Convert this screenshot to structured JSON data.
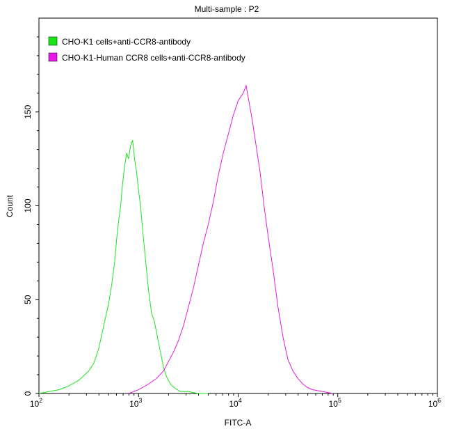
{
  "chart_data": {
    "type": "line",
    "title": "Multi-sample : P2",
    "xlabel": "FITC-A",
    "ylabel": "Count",
    "x_scale": "log10",
    "xlim_exp": [
      2,
      6
    ],
    "ylim": [
      0,
      200
    ],
    "grid": false,
    "legend_position": "top-left",
    "x_ticks": [
      {
        "base": "10",
        "exp": "2"
      },
      {
        "base": "10",
        "exp": "3"
      },
      {
        "base": "10",
        "exp": "4"
      },
      {
        "base": "10",
        "exp": "5"
      },
      {
        "base": "10",
        "exp": "6"
      }
    ],
    "y_ticks": [
      {
        "value": 0,
        "label": "0"
      },
      {
        "value": 50,
        "label": "50"
      },
      {
        "value": 100,
        "label": "100"
      },
      {
        "value": 150,
        "label": "150"
      }
    ],
    "series": [
      {
        "name": "CHO-K1 cells+anti-CCR8-antibody",
        "color": "#19e619",
        "points": [
          [
            2.0,
            0
          ],
          [
            2.1,
            1
          ],
          [
            2.2,
            2
          ],
          [
            2.3,
            4
          ],
          [
            2.4,
            7
          ],
          [
            2.5,
            12
          ],
          [
            2.55,
            16
          ],
          [
            2.6,
            24
          ],
          [
            2.65,
            36
          ],
          [
            2.7,
            48
          ],
          [
            2.73,
            58
          ],
          [
            2.76,
            70
          ],
          [
            2.78,
            82
          ],
          [
            2.8,
            92
          ],
          [
            2.82,
            100
          ],
          [
            2.84,
            112
          ],
          [
            2.86,
            121
          ],
          [
            2.88,
            128
          ],
          [
            2.9,
            125
          ],
          [
            2.92,
            132
          ],
          [
            2.94,
            135
          ],
          [
            2.96,
            125
          ],
          [
            2.98,
            118
          ],
          [
            3.0,
            108
          ],
          [
            3.02,
            100
          ],
          [
            3.05,
            82
          ],
          [
            3.08,
            66
          ],
          [
            3.1,
            55
          ],
          [
            3.13,
            43
          ],
          [
            3.16,
            38
          ],
          [
            3.19,
            30
          ],
          [
            3.22,
            22
          ],
          [
            3.25,
            14
          ],
          [
            3.28,
            9
          ],
          [
            3.32,
            5
          ],
          [
            3.36,
            3
          ],
          [
            3.42,
            1
          ],
          [
            3.5,
            1
          ],
          [
            3.6,
            0
          ],
          [
            3.7,
            0
          ]
        ]
      },
      {
        "name": "CHO-K1-Human CCR8 cells+anti-CCR8-antibody",
        "color": "#e619e6",
        "points": [
          [
            2.9,
            0
          ],
          [
            3.0,
            2
          ],
          [
            3.1,
            5
          ],
          [
            3.18,
            8
          ],
          [
            3.25,
            12
          ],
          [
            3.3,
            17
          ],
          [
            3.35,
            22
          ],
          [
            3.4,
            28
          ],
          [
            3.45,
            36
          ],
          [
            3.5,
            46
          ],
          [
            3.55,
            56
          ],
          [
            3.6,
            68
          ],
          [
            3.65,
            80
          ],
          [
            3.7,
            90
          ],
          [
            3.75,
            102
          ],
          [
            3.8,
            116
          ],
          [
            3.85,
            128
          ],
          [
            3.9,
            138
          ],
          [
            3.95,
            148
          ],
          [
            4.0,
            156
          ],
          [
            4.05,
            160
          ],
          [
            4.08,
            164
          ],
          [
            4.1,
            158
          ],
          [
            4.14,
            146
          ],
          [
            4.18,
            132
          ],
          [
            4.22,
            118
          ],
          [
            4.26,
            100
          ],
          [
            4.3,
            84
          ],
          [
            4.35,
            66
          ],
          [
            4.4,
            46
          ],
          [
            4.45,
            30
          ],
          [
            4.5,
            18
          ],
          [
            4.55,
            12
          ],
          [
            4.6,
            8
          ],
          [
            4.65,
            5
          ],
          [
            4.7,
            3
          ],
          [
            4.75,
            2
          ],
          [
            4.85,
            1
          ],
          [
            4.95,
            0
          ]
        ]
      }
    ]
  }
}
